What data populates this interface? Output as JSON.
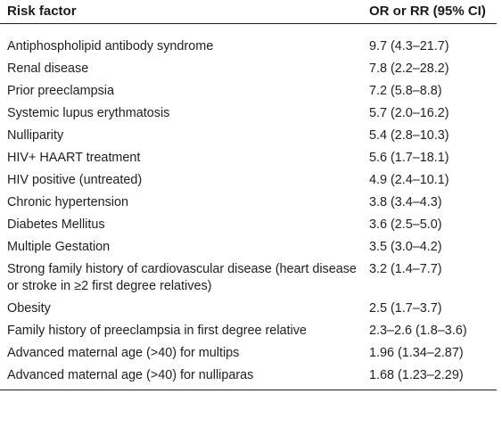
{
  "table": {
    "headers": {
      "factor": "Risk factor",
      "value": "OR or RR (95% CI)"
    },
    "rows": [
      {
        "factor": "Antiphospholipid antibody syndrome",
        "value": "9.7 (4.3–21.7)"
      },
      {
        "factor": "Renal disease",
        "value": "7.8 (2.2–28.2)"
      },
      {
        "factor": "Prior preeclampsia",
        "value": "7.2 (5.8–8.8)"
      },
      {
        "factor": "Systemic lupus erythmatosis",
        "value": "5.7 (2.0–16.2)"
      },
      {
        "factor": "Nulliparity",
        "value": "5.4 (2.8–10.3)"
      },
      {
        "factor": "HIV+ HAART treatment",
        "value": "5.6 (1.7–18.1)"
      },
      {
        "factor": "HIV positive (untreated)",
        "value": "4.9 (2.4–10.1)"
      },
      {
        "factor": "Chronic hypertension",
        "value": "3.8 (3.4–4.3)"
      },
      {
        "factor": "Diabetes Mellitus",
        "value": "3.6 (2.5–5.0)"
      },
      {
        "factor": "Multiple Gestation",
        "value": "3.5 (3.0–4.2)"
      },
      {
        "factor": "Strong family history of cardiovascular disease (heart disease or stroke in ≥2 first degree relatives)",
        "value": "3.2 (1.4–7.7)"
      },
      {
        "factor": "Obesity",
        "value": "2.5 (1.7–3.7)"
      },
      {
        "factor": "Family history of preeclampsia in first degree relative",
        "value": "2.3–2.6 (1.8–3.6)"
      },
      {
        "factor": "Advanced maternal age (>40) for multips",
        "value": "1.96 (1.34–2.87)"
      },
      {
        "factor": "Advanced maternal age (>40) for nulliparas",
        "value": "1.68 (1.23–2.29)"
      }
    ]
  }
}
